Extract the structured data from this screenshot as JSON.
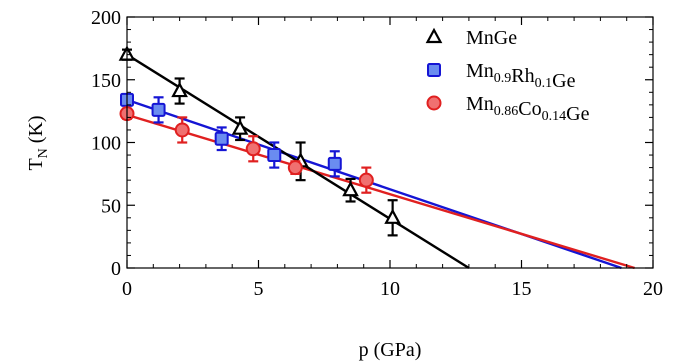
{
  "chart_data": {
    "type": "scatter",
    "xlabel": "p (GPa)",
    "ylabel": {
      "main": "T",
      "sub": "N",
      "unit": " (K)"
    },
    "xlim": [
      0,
      20
    ],
    "ylim": [
      0,
      200
    ],
    "x_ticks": [
      0,
      5,
      10,
      15,
      20
    ],
    "y_ticks": [
      0,
      50,
      100,
      150,
      200
    ],
    "grid": false,
    "legend_position": "top-right",
    "series": [
      {
        "name": "MnGe",
        "name_parts": [
          [
            "Mn",
            ""
          ],
          [
            "Ge",
            ""
          ]
        ],
        "marker": "triangle",
        "color": "#000000",
        "fill": "#ffffff",
        "points": [
          {
            "x": 0,
            "y": 170,
            "err": 4
          },
          {
            "x": 2,
            "y": 141,
            "err": 10
          },
          {
            "x": 4.3,
            "y": 111,
            "err": 9
          },
          {
            "x": 6.6,
            "y": 85,
            "err": 15
          },
          {
            "x": 8.5,
            "y": 62,
            "err": 9
          },
          {
            "x": 10.1,
            "y": 40,
            "err": 14
          }
        ],
        "fit": [
          [
            0,
            170
          ],
          [
            13,
            0
          ]
        ]
      },
      {
        "name": "Mn0.9Rh0.1Ge",
        "name_parts": [
          [
            "Mn",
            "0.9"
          ],
          [
            "Rh",
            "0.1"
          ],
          [
            "Ge",
            ""
          ]
        ],
        "marker": "square",
        "color": "#1515d4",
        "fill": "#6a8cf0",
        "points": [
          {
            "x": 0,
            "y": 134,
            "err": 4
          },
          {
            "x": 1.2,
            "y": 126,
            "err": 10
          },
          {
            "x": 3.6,
            "y": 103,
            "err": 9
          },
          {
            "x": 5.6,
            "y": 90,
            "err": 10
          },
          {
            "x": 7.9,
            "y": 83,
            "err": 10
          }
        ],
        "fit": [
          [
            0,
            134
          ],
          [
            18.8,
            0
          ]
        ]
      },
      {
        "name": "Mn0.86Co0.14Ge",
        "name_parts": [
          [
            "Mn",
            "0.86"
          ],
          [
            "Co",
            "0.14"
          ],
          [
            "Ge",
            ""
          ]
        ],
        "marker": "circle",
        "color": "#e02020",
        "fill": "#f07070",
        "points": [
          {
            "x": 0,
            "y": 123,
            "err": 4
          },
          {
            "x": 2.1,
            "y": 110,
            "err": 10
          },
          {
            "x": 4.8,
            "y": 95,
            "err": 10
          },
          {
            "x": 6.4,
            "y": 80,
            "err": 5
          },
          {
            "x": 9.1,
            "y": 70,
            "err": 10
          }
        ],
        "fit": [
          [
            0,
            122
          ],
          [
            19.3,
            0
          ]
        ]
      }
    ]
  }
}
